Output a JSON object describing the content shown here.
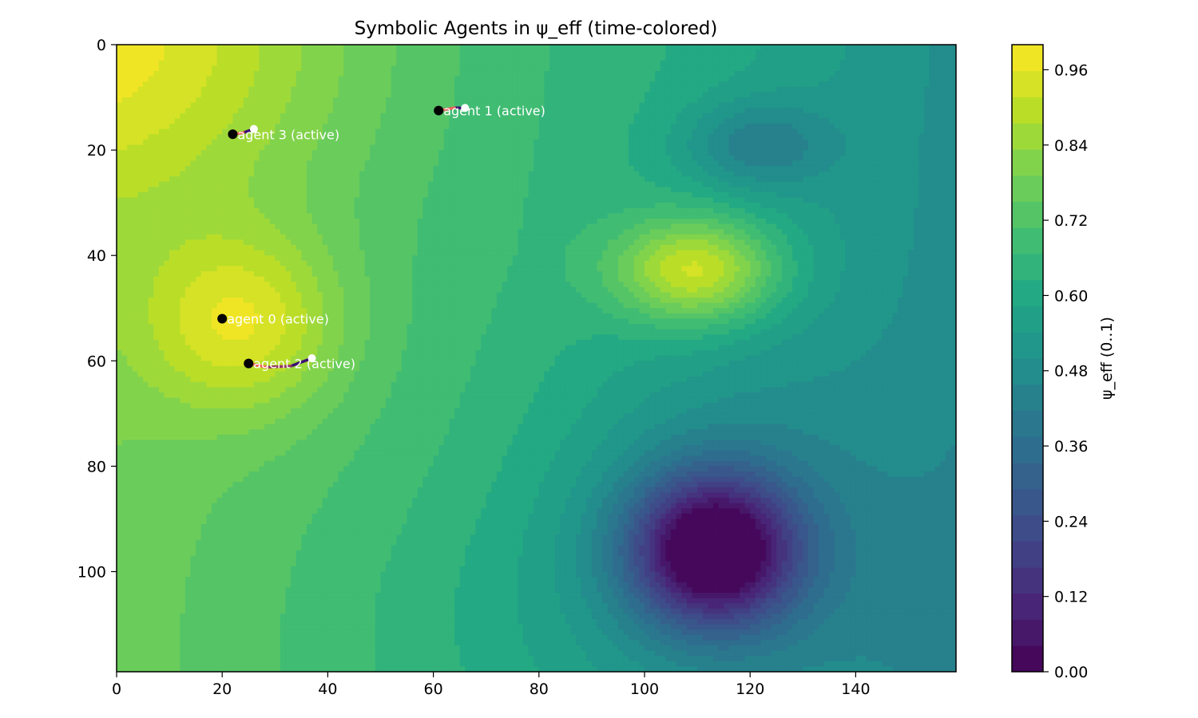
{
  "chart_data": {
    "type": "heatmap",
    "title": "Symbolic Agents in ψ_eff (time-colored)",
    "xlabel": "",
    "ylabel": "",
    "xlim": [
      0,
      159
    ],
    "ylim": [
      119,
      0
    ],
    "x_ticks": [
      0,
      20,
      40,
      60,
      80,
      100,
      120,
      140
    ],
    "y_ticks": [
      0,
      20,
      40,
      60,
      80,
      100
    ],
    "colorbar": {
      "label": "ψ_eff (0..1)",
      "range": [
        0,
        1
      ],
      "ticks": [
        "0.00",
        "0.12",
        "0.24",
        "0.36",
        "0.48",
        "0.60",
        "0.72",
        "0.84",
        "0.96"
      ],
      "colormap": "viridis"
    },
    "field_features": [
      {
        "kind": "peak",
        "x": 24,
        "y": 53,
        "value": 0.98
      },
      {
        "kind": "peak",
        "x": 110,
        "y": 43,
        "value": 0.98
      },
      {
        "kind": "peak",
        "x": 0,
        "y": 0,
        "value": 1.0
      },
      {
        "kind": "valley",
        "x": 113,
        "y": 96,
        "value": 0.02
      },
      {
        "kind": "valley",
        "x": 120,
        "y": 19,
        "value": 0.56
      }
    ],
    "series": [
      {
        "name": "agent 0 (active)",
        "trail": [
          [
            20,
            52
          ],
          [
            20,
            52
          ]
        ],
        "start": [
          20,
          52
        ],
        "end": [
          20,
          52
        ]
      },
      {
        "name": "agent 1 (active)",
        "trail": [
          [
            66,
            12
          ],
          [
            64,
            12
          ],
          [
            61,
            12.5
          ]
        ],
        "start": [
          66,
          12
        ],
        "end": [
          61,
          12.5
        ]
      },
      {
        "name": "agent 2 (active)",
        "trail": [
          [
            37,
            59.5
          ],
          [
            33,
            61
          ],
          [
            28.5,
            61.2
          ],
          [
            25,
            60.5
          ]
        ],
        "start": [
          37,
          59.5
        ],
        "end": [
          25,
          60.5
        ]
      },
      {
        "name": "agent 3 (active)",
        "trail": [
          [
            26,
            16
          ],
          [
            24,
            16.7
          ],
          [
            22,
            17
          ]
        ],
        "start": [
          26,
          16
        ],
        "end": [
          22,
          17
        ]
      }
    ]
  },
  "colors": {
    "trail_start": "#3b0f70",
    "trail_end": "#f1605d",
    "agent_current": "#000000",
    "agent_start": "#ffffff",
    "label": "#ffffff"
  }
}
